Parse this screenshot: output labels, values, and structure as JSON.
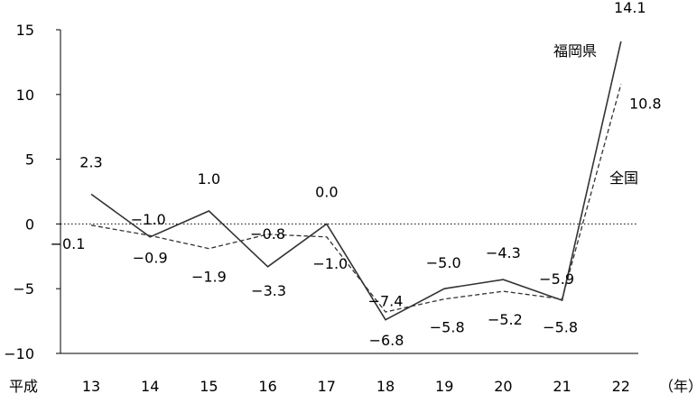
{
  "chart_data": {
    "type": "line",
    "x": [
      "13",
      "14",
      "15",
      "16",
      "17",
      "18",
      "19",
      "20",
      "21",
      "22"
    ],
    "x_prefix": "平成",
    "x_unit": "（年）",
    "ylim": [
      -10,
      15
    ],
    "yticks": [
      "15",
      "10",
      "5",
      "0",
      "−5",
      "−10"
    ],
    "ytick_values": [
      15,
      10,
      5,
      0,
      -5,
      -10
    ],
    "grid": false,
    "zero_line": "dotted",
    "series": [
      {
        "name": "福岡県",
        "style": "solid",
        "values": [
          2.3,
          -1.0,
          1.0,
          -3.3,
          0.0,
          -7.4,
          -5.0,
          -4.3,
          -5.9,
          14.1
        ],
        "labels": [
          "2.3",
          "−1.0",
          "1.0",
          "−3.3",
          "0.0",
          "−7.4",
          "−5.0",
          "−4.3",
          "−5.9",
          "14.1"
        ]
      },
      {
        "name": "全国",
        "style": "dashed",
        "values": [
          -0.1,
          -0.9,
          -1.9,
          -0.8,
          -1.0,
          -6.8,
          -5.8,
          -5.2,
          -5.8,
          10.8
        ],
        "labels": [
          "−0.1",
          "−0.9",
          "−1.9",
          "−0.8",
          "−1.0",
          "−6.8",
          "−5.8",
          "−5.2",
          "−5.8",
          "10.8"
        ]
      }
    ],
    "colors": {
      "line": "#333333",
      "axis": "#000000"
    }
  }
}
